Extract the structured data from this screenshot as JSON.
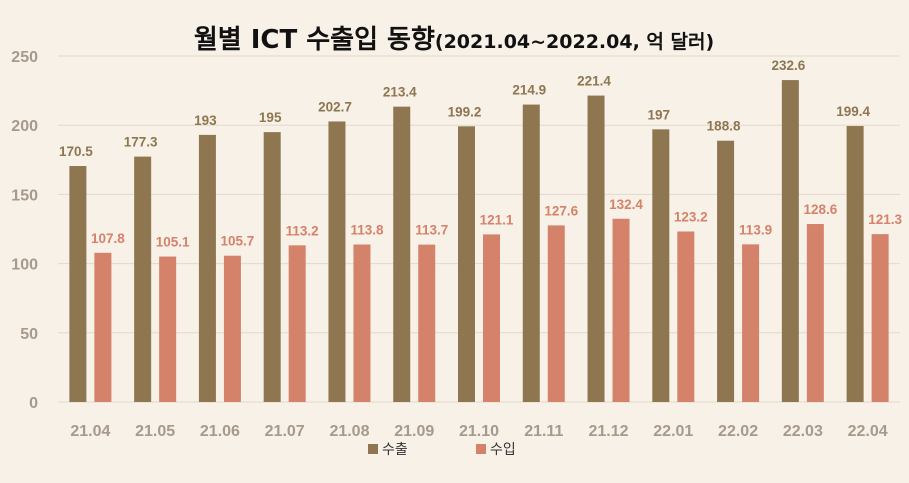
{
  "chart_data": {
    "type": "bar",
    "title": "월별 ICT 수출입 동향",
    "subtitle": "(2021.04~2022.04, 억 달러)",
    "categories": [
      "21.04",
      "21.05",
      "21.06",
      "21.07",
      "21.08",
      "21.09",
      "21.10",
      "21.11",
      "21.12",
      "22.01",
      "22.02",
      "22.03",
      "22.04"
    ],
    "series": [
      {
        "name": "수출",
        "color": "#8d7650",
        "values": [
          170.5,
          177.3,
          193,
          195,
          202.7,
          213.4,
          199.2,
          214.9,
          221.4,
          197,
          188.8,
          232.6,
          199.4
        ],
        "labels": [
          "170.5",
          "177.3",
          "193",
          "195",
          "202.7",
          "213.4",
          "199.2",
          "214.9",
          "221.4",
          "197",
          "188.8",
          "232.6",
          "199.4"
        ]
      },
      {
        "name": "수입",
        "color": "#d5826a",
        "values": [
          107.8,
          105.1,
          105.7,
          113.2,
          113.8,
          113.7,
          121.1,
          127.6,
          132.4,
          123.2,
          113.9,
          128.6,
          121.3
        ],
        "labels": [
          "107.8",
          "105.1",
          "105.7",
          "113.2",
          "113.8",
          "113.7",
          "121.1",
          "127.6",
          "132.4",
          "123.2",
          "113.9",
          "128.6",
          "121.3"
        ]
      }
    ],
    "ylim": [
      0,
      250
    ],
    "yticks": [
      0,
      50,
      100,
      150,
      200,
      250
    ],
    "grid": true,
    "legend_position": "bottom"
  }
}
